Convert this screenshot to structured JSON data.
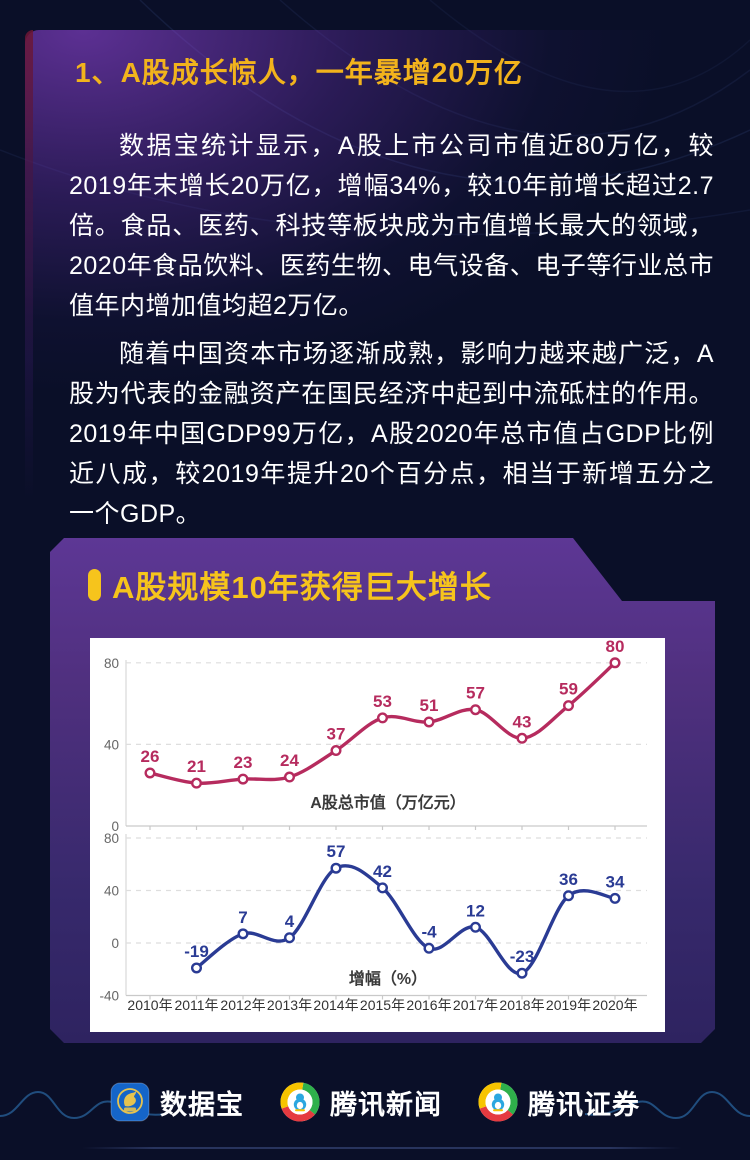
{
  "header": {
    "title": "1、A股成长惊人，一年暴增20万亿"
  },
  "paragraphs": [
    "数据宝统计显示，A股上市公司市值近80万亿，较2019年末增长20万亿，增幅34%，较10年前增长超过2.7倍。食品、医药、科技等板块成为市值增长最大的领域，2020年食品饮料、医药生物、电气设备、电子等行业总市值年内增加值均超2万亿。",
    "随着中国资本市场逐渐成熟，影响力越来越广泛，A股为代表的金融资产在国民经济中起到中流砥柱的作用。2019年中国GDP99万亿，A股2020年总市值占GDP比例近八成，较2019年提升20个百分点，相当于新增五分之一个GDP。"
  ],
  "section": {
    "title": "A股规模10年获得巨大增长"
  },
  "chart_data": [
    {
      "type": "line",
      "title": "A股总市值（万亿元）",
      "categories": [
        "2010年",
        "2011年",
        "2012年",
        "2013年",
        "2014年",
        "2015年",
        "2016年",
        "2017年",
        "2018年",
        "2019年",
        "2020年"
      ],
      "values": [
        26,
        21,
        23,
        24,
        37,
        53,
        51,
        57,
        43,
        59,
        80
      ],
      "yticks": [
        0,
        40,
        80
      ],
      "ylim": [
        0,
        90
      ],
      "grid": "dashed",
      "marker": "open-circle",
      "color": "#b62b5e",
      "legend_position": "none"
    },
    {
      "type": "line",
      "title": "增幅（%）",
      "categories": [
        "2010年",
        "2011年",
        "2012年",
        "2013年",
        "2014年",
        "2015年",
        "2016年",
        "2017年",
        "2018年",
        "2019年",
        "2020年"
      ],
      "values": [
        null,
        -19,
        7,
        4,
        57,
        42,
        -4,
        12,
        -23,
        36,
        34
      ],
      "yticks": [
        -40,
        0,
        40,
        80
      ],
      "ylim": [
        -40,
        90
      ],
      "grid": "dashed",
      "marker": "open-circle",
      "color": "#2a3b94",
      "legend_position": "none"
    }
  ],
  "footer": {
    "brands": [
      {
        "name": "数据宝"
      },
      {
        "name": "腾讯新闻"
      },
      {
        "name": "腾讯证券"
      }
    ]
  },
  "colors": {
    "accent_yellow": "#f2b31c",
    "market_cap_line": "#b62b5e",
    "growth_line": "#2a3b94",
    "panel_purple": "#5d3795",
    "background_navy": "#101734",
    "chart_card": "#ffffff"
  }
}
